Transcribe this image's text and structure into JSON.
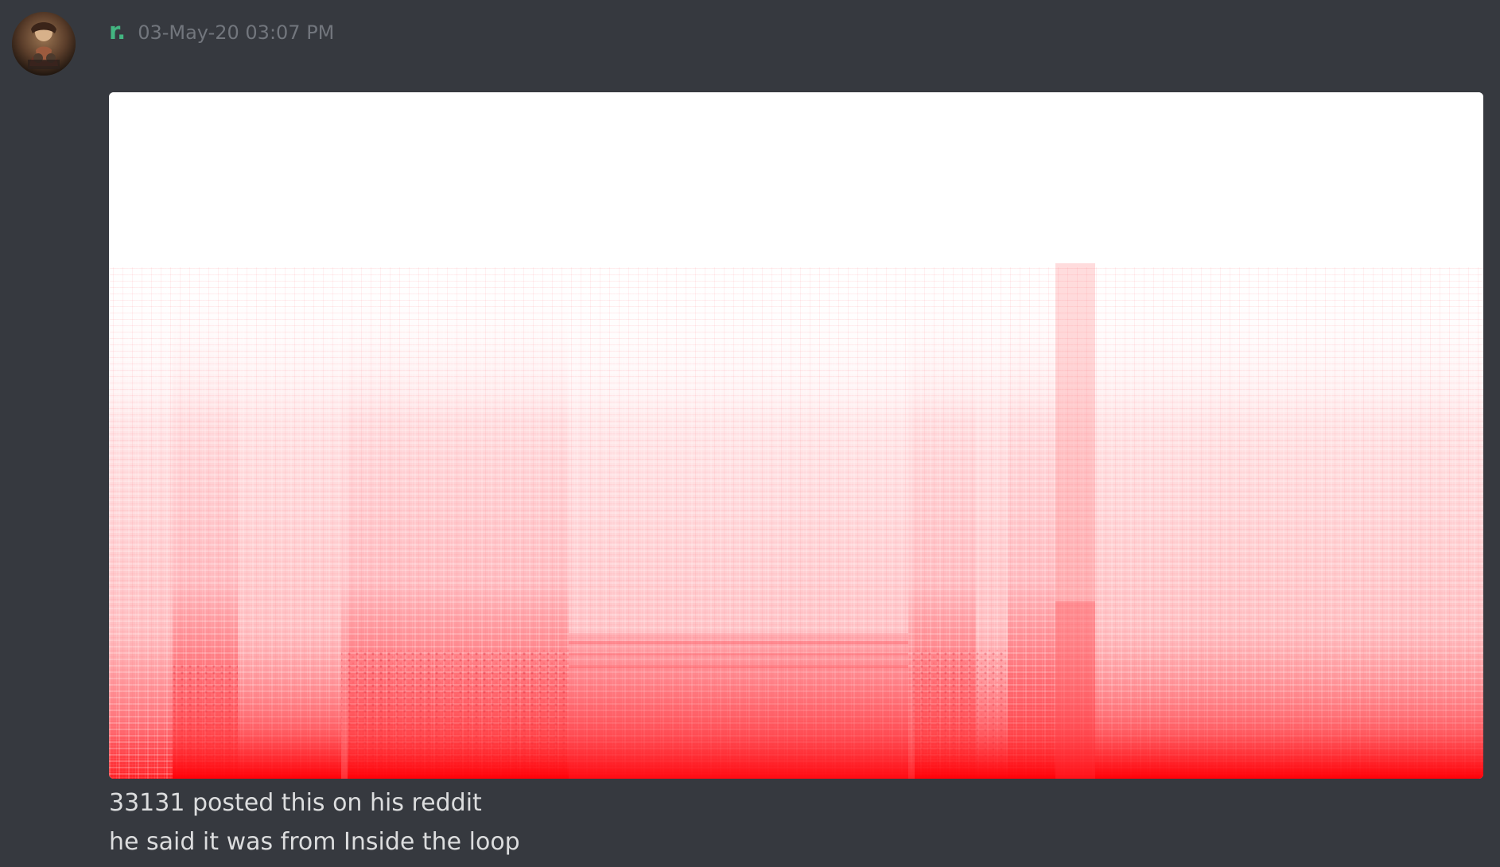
{
  "message": {
    "author": {
      "name": "r.",
      "name_color": "#43b581",
      "avatar_icon": "avatar-icon"
    },
    "timestamp": "03-May-20 03:07 PM",
    "attachment": {
      "kind": "spectrogram image",
      "background": "#ffffff",
      "accent": "#ff0000"
    },
    "content_lines": [
      "33131 posted this on his reddit",
      "he said it was from Inside the loop"
    ]
  }
}
